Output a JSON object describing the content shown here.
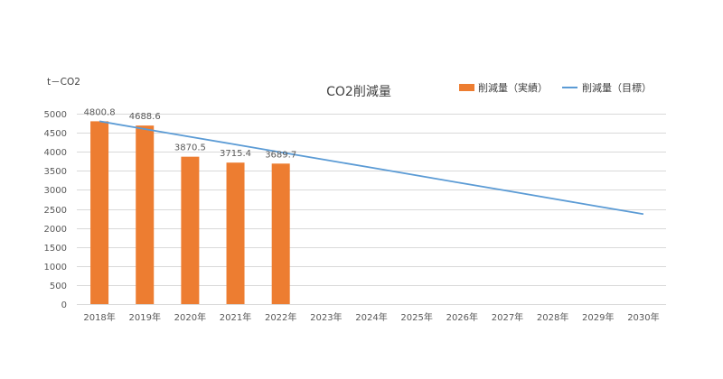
{
  "chart_data": {
    "type": "bar",
    "title": "CO2削減量",
    "ylabel": "t－CO2",
    "xlabel": "",
    "categories": [
      "2018年",
      "2019年",
      "2020年",
      "2021年",
      "2022年",
      "2023年",
      "2024年",
      "2025年",
      "2026年",
      "2027年",
      "2028年",
      "2029年",
      "2030年"
    ],
    "ylim": [
      0,
      5000
    ],
    "yticks": [
      0,
      500,
      1000,
      1500,
      2000,
      2500,
      3000,
      3500,
      4000,
      4500,
      5000
    ],
    "grid": true,
    "legend_position": "top-right",
    "series": [
      {
        "name": "削減量（実績）",
        "type": "bar",
        "color": "#ed7d31",
        "values": [
          4800.8,
          4688.6,
          3870.5,
          3715.4,
          3689.7,
          null,
          null,
          null,
          null,
          null,
          null,
          null,
          null
        ],
        "data_labels": [
          "4800.8",
          "4688.6",
          "3870.5",
          "3715.4",
          "3689.7"
        ]
      },
      {
        "name": "削減量（目標）",
        "type": "line",
        "color": "#5b9bd5",
        "values": [
          4800.8,
          4597,
          4394,
          4191,
          3988,
          3785,
          3582,
          3379,
          3176,
          2973,
          2770,
          2567,
          2364
        ]
      }
    ]
  }
}
